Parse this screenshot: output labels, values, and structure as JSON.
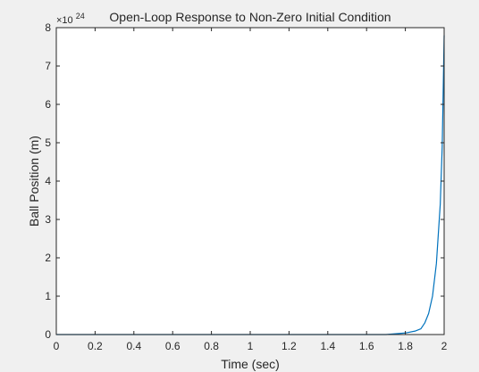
{
  "chart_data": {
    "type": "line",
    "title": "Open-Loop Response to Non-Zero Initial Condition",
    "xlabel": "Time (sec)",
    "ylabel": "Ball Position (m)",
    "exponent_label": "×10",
    "exponent_power": "24",
    "xlim": [
      0,
      2
    ],
    "ylim": [
      0,
      8
    ],
    "y_scale_factor": 1e+24,
    "x_ticks": [
      "0",
      "0.2",
      "0.4",
      "0.6",
      "0.8",
      "1",
      "1.2",
      "1.4",
      "1.6",
      "1.8",
      "2"
    ],
    "y_ticks": [
      "0",
      "1",
      "2",
      "3",
      "4",
      "5",
      "6",
      "7",
      "8"
    ],
    "grid": false,
    "legend": "none",
    "series": [
      {
        "color": "#0072bd",
        "x": [
          0,
          1.7,
          1.8,
          1.85,
          1.88,
          1.9,
          1.92,
          1.94,
          1.96,
          1.98,
          1.99,
          2.0
        ],
        "y": [
          0,
          0.0,
          0.04,
          0.09,
          0.15,
          0.3,
          0.55,
          1.0,
          1.85,
          3.4,
          4.9,
          7.8
        ]
      }
    ]
  }
}
